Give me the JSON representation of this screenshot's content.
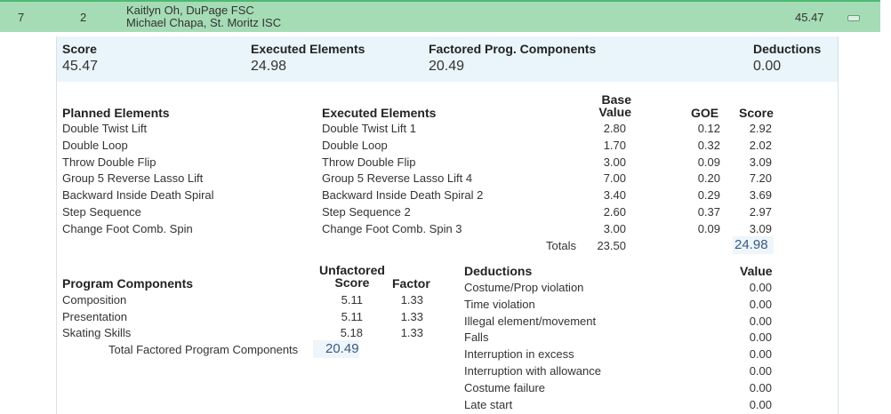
{
  "header": {
    "rank": "7",
    "start": "2",
    "names": [
      "Kaitlyn Oh, DuPage FSC",
      "Michael Chapa, St. Moritz ISC"
    ],
    "total": "45.47"
  },
  "summary": {
    "score_label": "Score",
    "score": "45.47",
    "exec_label": "Executed Elements",
    "exec": "24.98",
    "fpc_label": "Factored Prog. Components",
    "fpc": "20.49",
    "ded_label": "Deductions",
    "ded": "0.00"
  },
  "elements": {
    "planned_header": "Planned Elements",
    "executed_header": "Executed Elements",
    "base_header_1": "Base",
    "base_header_2": "Value",
    "goe_header": "GOE",
    "score_header": "Score",
    "rows": [
      {
        "planned": "Double Twist Lift",
        "executed": "Double Twist Lift 1",
        "base": "2.80",
        "goe": "0.12",
        "score": "2.92"
      },
      {
        "planned": "Double Loop",
        "executed": "Double Loop",
        "base": "1.70",
        "goe": "0.32",
        "score": "2.02"
      },
      {
        "planned": "Throw Double Flip",
        "executed": "Throw Double Flip",
        "base": "3.00",
        "goe": "0.09",
        "score": "3.09"
      },
      {
        "planned": "Group 5 Reverse Lasso Lift",
        "executed": "Group 5 Reverse Lasso Lift 4",
        "base": "7.00",
        "goe": "0.20",
        "score": "7.20"
      },
      {
        "planned": "Backward Inside Death Spiral",
        "executed": "Backward Inside Death Spiral 2",
        "base": "3.40",
        "goe": "0.29",
        "score": "3.69"
      },
      {
        "planned": "Step Sequence",
        "executed": "Step Sequence 2",
        "base": "2.60",
        "goe": "0.37",
        "score": "2.97"
      },
      {
        "planned": "Change Foot Comb. Spin",
        "executed": "Change Foot Comb. Spin 3",
        "base": "3.00",
        "goe": "0.09",
        "score": "3.09"
      }
    ],
    "totals_label": "Totals",
    "totals_base": "23.50",
    "totals_score": "24.98"
  },
  "components": {
    "header": "Program Components",
    "unf_header_1": "Unfactored",
    "unf_header_2": "Score",
    "factor_header": "Factor",
    "rows": [
      {
        "name": "Composition",
        "score": "5.11",
        "factor": "1.33"
      },
      {
        "name": "Presentation",
        "score": "5.11",
        "factor": "1.33"
      },
      {
        "name": "Skating Skills",
        "score": "5.18",
        "factor": "1.33"
      }
    ],
    "total_label": "Total Factored Program Components",
    "total": "20.49"
  },
  "deductions": {
    "header": "Deductions",
    "value_header": "Value",
    "rows": [
      {
        "name": "Costume/Prop violation",
        "value": "0.00"
      },
      {
        "name": "Time violation",
        "value": "0.00"
      },
      {
        "name": "Illegal element/movement",
        "value": "0.00"
      },
      {
        "name": "Falls",
        "value": "0.00"
      },
      {
        "name": "Interruption in excess",
        "value": "0.00"
      },
      {
        "name": "Interruption with allowance",
        "value": "0.00"
      },
      {
        "name": "Costume failure",
        "value": "0.00"
      },
      {
        "name": "Late start",
        "value": "0.00"
      }
    ]
  }
}
